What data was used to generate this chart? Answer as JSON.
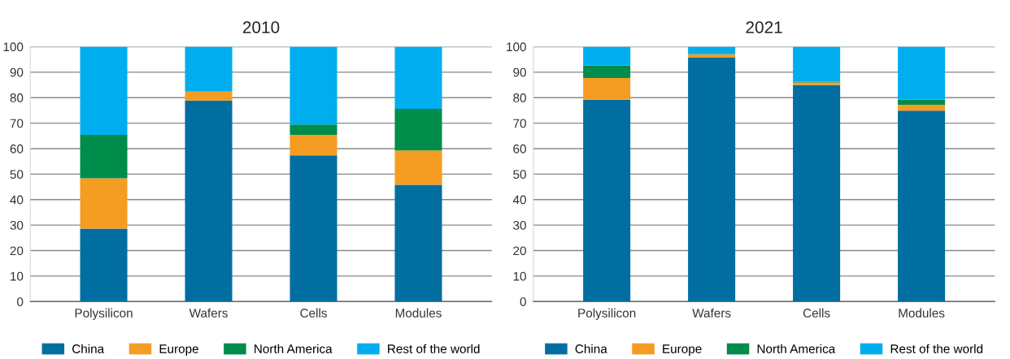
{
  "chart_data": [
    {
      "type": "bar",
      "title": "2010",
      "categories": [
        "Polysilicon",
        "Wafers",
        "Cells",
        "Modules"
      ],
      "stacked": true,
      "series": [
        {
          "name": "China",
          "color": "#006ea0",
          "values": [
            28.6,
            78.9,
            57.4,
            45.8
          ]
        },
        {
          "name": "Europe",
          "color": "#f59c22",
          "values": [
            19.8,
            3.5,
            8.0,
            13.5
          ]
        },
        {
          "name": "North America",
          "color": "#008c4b",
          "values": [
            17.0,
            0,
            4.1,
            16.3
          ]
        },
        {
          "name": "Rest of the world",
          "color": "#00aeef",
          "values": [
            34.6,
            17.6,
            30.5,
            24.4
          ]
        }
      ],
      "ylim": [
        0,
        100
      ],
      "yticks": [
        0,
        10,
        20,
        30,
        40,
        50,
        60,
        70,
        80,
        90,
        100
      ],
      "grid": "y",
      "legend": "bottom"
    },
    {
      "type": "bar",
      "title": "2021",
      "categories": [
        "Polysilicon",
        "Wafers",
        "Cells",
        "Modules"
      ],
      "stacked": true,
      "series": [
        {
          "name": "China",
          "color": "#006ea0",
          "values": [
            79.2,
            95.7,
            84.9,
            74.9
          ]
        },
        {
          "name": "Europe",
          "color": "#f59c22",
          "values": [
            8.5,
            1.3,
            1.1,
            2.3
          ]
        },
        {
          "name": "North America",
          "color": "#008c4b",
          "values": [
            4.9,
            0,
            0.3,
            2.0
          ]
        },
        {
          "name": "Rest of the world",
          "color": "#00aeef",
          "values": [
            7.4,
            3.0,
            13.7,
            20.8
          ]
        }
      ],
      "ylim": [
        0,
        100
      ],
      "yticks": [
        0,
        10,
        20,
        30,
        40,
        50,
        60,
        70,
        80,
        90,
        100
      ],
      "grid": "y",
      "legend": "bottom"
    }
  ]
}
